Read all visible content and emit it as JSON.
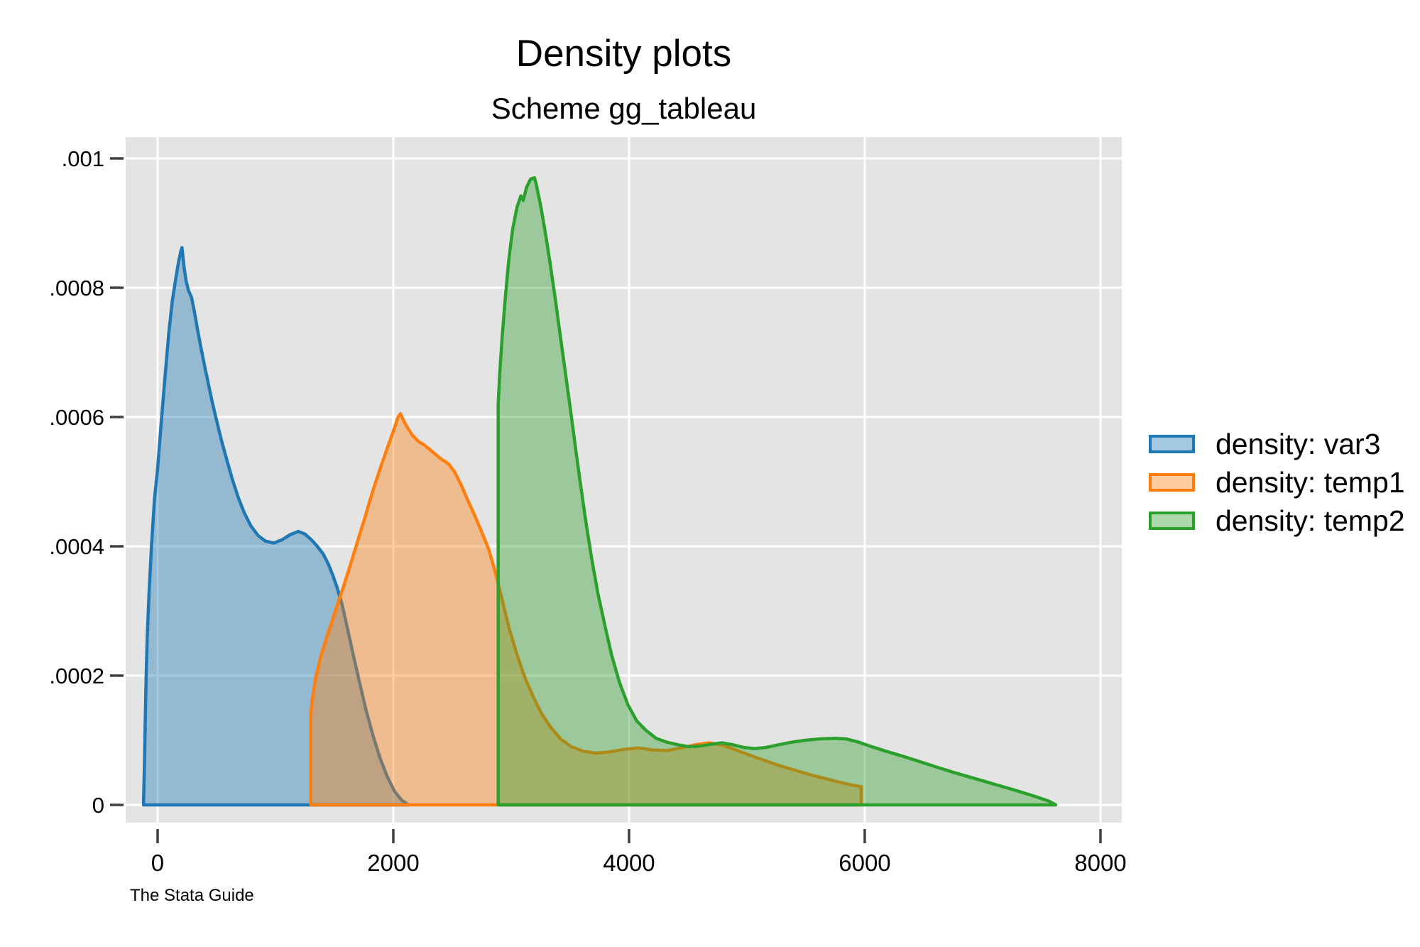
{
  "header": {
    "title": "Density plots",
    "subtitle": "Scheme gg_tableau"
  },
  "footer": {
    "note": "The Stata Guide"
  },
  "legend": {
    "position": "right",
    "items": [
      {
        "label": "density: var3",
        "line_color": "#1F77B4",
        "fill_color": "#A5C9E1"
      },
      {
        "label": "density: temp1",
        "line_color": "#FF7F0E",
        "fill_color": "#FFCC9E"
      },
      {
        "label": "density: temp2",
        "line_color": "#2CA02C",
        "fill_color": "#ABD9AB"
      }
    ]
  },
  "chart_data": {
    "type": "area",
    "title": "Density plots",
    "subtitle": "Scheme gg_tableau",
    "note": "The Stata Guide",
    "xlabel": "",
    "ylabel": "",
    "xlim": [
      -271,
      8181
    ],
    "ylim": [
      -2.75e-05,
      0.0010329
    ],
    "grid": true,
    "legend_position": "right",
    "plot_bg": "#E4E4E4",
    "grid_color": "#FFFFFF",
    "tick_color": "#404040",
    "label_color": "#000000",
    "fill_opacity": 0.4,
    "line_width": 4.5,
    "x_ticks": {
      "values": [
        0,
        2000,
        4000,
        6000,
        8000
      ],
      "labels": [
        "0",
        "2000",
        "4000",
        "6000",
        "8000"
      ]
    },
    "y_ticks": {
      "values": [
        0,
        0.0002,
        0.0004,
        0.0006,
        0.0008,
        0.001
      ],
      "labels": [
        "0",
        ".0002",
        ".0004",
        ".0006",
        ".0008",
        ".001"
      ]
    },
    "series": [
      {
        "name": "density: var3",
        "line_color": "#1F77B4",
        "points": [
          [
            -120,
            0
          ],
          [
            -112,
            6e-05
          ],
          [
            -105,
            0.00013
          ],
          [
            -97,
            0.0002
          ],
          [
            -88,
            0.00026
          ],
          [
            -72,
            0.00033
          ],
          [
            -52,
            0.0004
          ],
          [
            -28,
            0.00047
          ],
          [
            0,
            0.00052
          ],
          [
            30,
            0.00059
          ],
          [
            62,
            0.00066
          ],
          [
            95,
            0.00073
          ],
          [
            125,
            0.00078
          ],
          [
            155,
            0.000815
          ],
          [
            178,
            0.00084
          ],
          [
            195,
            0.000855
          ],
          [
            207,
            0.000862
          ],
          [
            222,
            0.000835
          ],
          [
            242,
            0.00081
          ],
          [
            263,
            0.000795
          ],
          [
            288,
            0.000785
          ],
          [
            315,
            0.00076
          ],
          [
            342,
            0.000732
          ],
          [
            370,
            0.000705
          ],
          [
            400,
            0.000678
          ],
          [
            432,
            0.00065
          ],
          [
            465,
            0.000622
          ],
          [
            500,
            0.000595
          ],
          [
            540,
            0.000565
          ],
          [
            585,
            0.000535
          ],
          [
            635,
            0.000503
          ],
          [
            685,
            0.000475
          ],
          [
            735,
            0.000452
          ],
          [
            790,
            0.000432
          ],
          [
            850,
            0.000417
          ],
          [
            915,
            0.000408
          ],
          [
            985,
            0.000405
          ],
          [
            1055,
            0.00041
          ],
          [
            1125,
            0.000418
          ],
          [
            1195,
            0.000423
          ],
          [
            1250,
            0.000419
          ],
          [
            1305,
            0.00041
          ],
          [
            1355,
            0.0004
          ],
          [
            1405,
            0.000388
          ],
          [
            1445,
            0.000374
          ],
          [
            1485,
            0.000356
          ],
          [
            1525,
            0.000335
          ],
          [
            1565,
            0.00031
          ],
          [
            1612,
            0.000272
          ],
          [
            1660,
            0.000232
          ],
          [
            1710,
            0.000192
          ],
          [
            1768,
            0.000147
          ],
          [
            1828,
            0.000107
          ],
          [
            1888,
            7.2e-05
          ],
          [
            1948,
            4.4e-05
          ],
          [
            2010,
            2.1e-05
          ],
          [
            2072,
            7e-06
          ],
          [
            2130,
            0
          ]
        ]
      },
      {
        "name": "density: temp1",
        "line_color": "#FF7F0E",
        "points": [
          [
            1300,
            0
          ],
          [
            1300,
            0.00014
          ],
          [
            1312,
            0.000162
          ],
          [
            1340,
            0.000195
          ],
          [
            1385,
            0.00023
          ],
          [
            1440,
            0.000262
          ],
          [
            1500,
            0.000295
          ],
          [
            1560,
            0.000328
          ],
          [
            1625,
            0.000365
          ],
          [
            1692,
            0.000405
          ],
          [
            1760,
            0.000445
          ],
          [
            1825,
            0.000485
          ],
          [
            1888,
            0.00052
          ],
          [
            1945,
            0.00055
          ],
          [
            2000,
            0.000578
          ],
          [
            2040,
            0.0006
          ],
          [
            2060,
            0.000605
          ],
          [
            2085,
            0.000595
          ],
          [
            2115,
            0.000585
          ],
          [
            2160,
            0.000572
          ],
          [
            2215,
            0.000562
          ],
          [
            2275,
            0.000555
          ],
          [
            2340,
            0.000545
          ],
          [
            2405,
            0.000535
          ],
          [
            2465,
            0.000528
          ],
          [
            2520,
            0.000515
          ],
          [
            2575,
            0.000495
          ],
          [
            2630,
            0.000472
          ],
          [
            2690,
            0.000448
          ],
          [
            2750,
            0.000422
          ],
          [
            2810,
            0.000395
          ],
          [
            2865,
            0.00036
          ],
          [
            2920,
            0.00032
          ],
          [
            2980,
            0.000275
          ],
          [
            3045,
            0.000235
          ],
          [
            3110,
            0.0002
          ],
          [
            3180,
            0.00017
          ],
          [
            3255,
            0.000142
          ],
          [
            3335,
            0.00012
          ],
          [
            3420,
            0.000102
          ],
          [
            3510,
            9e-05
          ],
          [
            3610,
            8.3e-05
          ],
          [
            3720,
            8e-05
          ],
          [
            3840,
            8.2e-05
          ],
          [
            3960,
            8.6e-05
          ],
          [
            4080,
            8.8e-05
          ],
          [
            4200,
            8.5e-05
          ],
          [
            4320,
            8.4e-05
          ],
          [
            4440,
            8.8e-05
          ],
          [
            4560,
            9.3e-05
          ],
          [
            4680,
            9.6e-05
          ],
          [
            4800,
            9.2e-05
          ],
          [
            4920,
            8.4e-05
          ],
          [
            5040,
            7.6e-05
          ],
          [
            5160,
            6.8e-05
          ],
          [
            5290,
            6e-05
          ],
          [
            5420,
            5.3e-05
          ],
          [
            5550,
            4.6e-05
          ],
          [
            5680,
            4e-05
          ],
          [
            5810,
            3.4e-05
          ],
          [
            5910,
            3e-05
          ],
          [
            5970,
            2.8e-05
          ],
          [
            5970,
            0
          ]
        ]
      },
      {
        "name": "density: temp2",
        "line_color": "#2CA02C",
        "points": [
          [
            2890,
            0
          ],
          [
            2890,
            0.00062
          ],
          [
            2902,
            0.000665
          ],
          [
            2922,
            0.00072
          ],
          [
            2948,
            0.00078
          ],
          [
            2978,
            0.00084
          ],
          [
            3012,
            0.00089
          ],
          [
            3050,
            0.000925
          ],
          [
            3082,
            0.000942
          ],
          [
            3102,
            0.000935
          ],
          [
            3130,
            0.000955
          ],
          [
            3165,
            0.000968
          ],
          [
            3198,
            0.00097
          ],
          [
            3215,
            0.000958
          ],
          [
            3252,
            0.000925
          ],
          [
            3290,
            0.000885
          ],
          [
            3330,
            0.000838
          ],
          [
            3370,
            0.000788
          ],
          [
            3412,
            0.000732
          ],
          [
            3455,
            0.000675
          ],
          [
            3498,
            0.000618
          ],
          [
            3540,
            0.00056
          ],
          [
            3585,
            0.0005
          ],
          [
            3632,
            0.00044
          ],
          [
            3682,
            0.000382
          ],
          [
            3735,
            0.000328
          ],
          [
            3792,
            0.00028
          ],
          [
            3852,
            0.000232
          ],
          [
            3918,
            0.00019
          ],
          [
            3990,
            0.000155
          ],
          [
            4065,
            0.00013
          ],
          [
            4145,
            0.000115
          ],
          [
            4230,
            0.000103
          ],
          [
            4320,
            9.7e-05
          ],
          [
            4415,
            9.3e-05
          ],
          [
            4510,
            9e-05
          ],
          [
            4605,
            9.1e-05
          ],
          [
            4700,
            9.4e-05
          ],
          [
            4790,
            9.6e-05
          ],
          [
            4880,
            9.3e-05
          ],
          [
            4970,
            8.9e-05
          ],
          [
            5065,
            8.7e-05
          ],
          [
            5165,
            8.9e-05
          ],
          [
            5270,
            9.3e-05
          ],
          [
            5380,
            9.7e-05
          ],
          [
            5495,
            0.0001
          ],
          [
            5615,
            0.000102
          ],
          [
            5740,
            0.000103
          ],
          [
            5845,
            0.000102
          ],
          [
            5950,
            9.7e-05
          ],
          [
            6060,
            9e-05
          ],
          [
            6180,
            8.3e-05
          ],
          [
            6310,
            7.6e-05
          ],
          [
            6450,
            6.8e-05
          ],
          [
            6600,
            5.9e-05
          ],
          [
            6760,
            5e-05
          ],
          [
            6930,
            4.1e-05
          ],
          [
            7100,
            3.2e-05
          ],
          [
            7270,
            2.3e-05
          ],
          [
            7430,
            1.4e-05
          ],
          [
            7560,
            6e-06
          ],
          [
            7620,
            0
          ]
        ]
      }
    ]
  }
}
